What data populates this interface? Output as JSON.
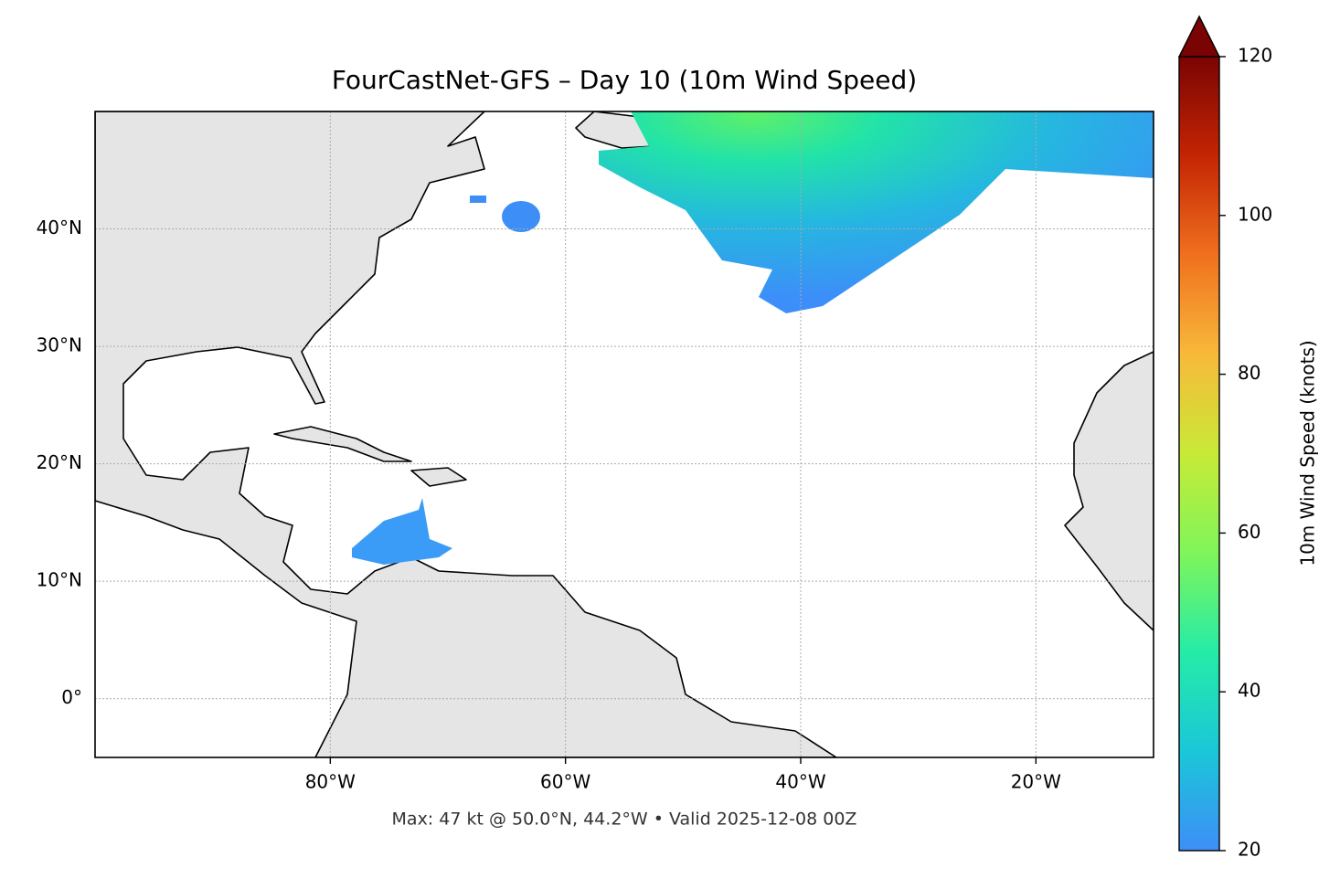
{
  "chart_data": {
    "type": "map",
    "title": "FourCastNet-GFS – Day 10 (10m Wind Speed)",
    "footnote": "Max: 47 kt @ 50.0°N, 44.2°W • Valid 2025-12-08 00Z",
    "xlim": [
      -100,
      -10
    ],
    "ylim": [
      -5,
      50
    ],
    "xticks": [
      {
        "value": -80,
        "label": "80°W"
      },
      {
        "value": -60,
        "label": "60°W"
      },
      {
        "value": -40,
        "label": "40°W"
      },
      {
        "value": -20,
        "label": "20°W"
      }
    ],
    "yticks": [
      {
        "value": 0,
        "label": "0°"
      },
      {
        "value": 10,
        "label": "10°N"
      },
      {
        "value": 20,
        "label": "20°N"
      },
      {
        "value": 30,
        "label": "30°N"
      },
      {
        "value": 40,
        "label": "40°N"
      }
    ],
    "grid": true,
    "colorbar": {
      "label": "10m Wind Speed (knots)",
      "lim": [
        20,
        120
      ],
      "ticks": [
        20,
        40,
        60,
        80,
        100,
        120
      ],
      "extend": "max",
      "colors": [
        "#3e8ef7",
        "#1ac7d8",
        "#25eca7",
        "#7ff55a",
        "#c8ea37",
        "#f8b93a",
        "#f0701e",
        "#c42503",
        "#7a0403"
      ]
    }
  }
}
